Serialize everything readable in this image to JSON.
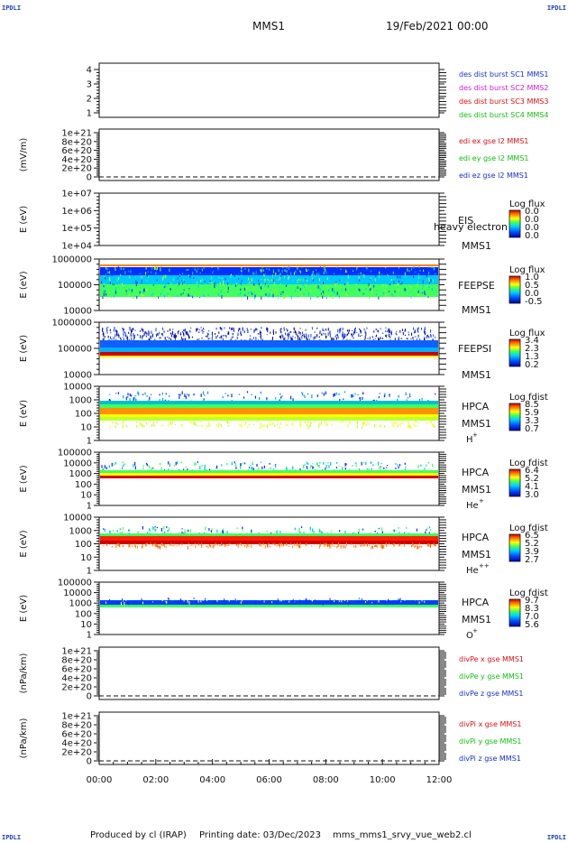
{
  "header": {
    "corner_left_top": "IPDLI",
    "corner_right_top": "IPDLI",
    "corner_left_bottom": "IPDLI",
    "corner_right_bottom": "IPDLI",
    "title": "MMS1",
    "date": "19/Feb/2021 00:00"
  },
  "footer": {
    "produced": "Produced by cl (IRAP)",
    "printing": "Printing date: 03/Dec/2023",
    "script": "mms_mms1_srvy_vue_web2.cl"
  },
  "chart_data": {
    "type": "heatmap",
    "x_ticks": [
      "00:00",
      "02:00",
      "04:00",
      "06:00",
      "08:00",
      "10:00",
      "12:00"
    ],
    "panels": [
      {
        "id": "des",
        "ylabel": "",
        "yticks": [
          "4",
          "3",
          "2",
          "1"
        ],
        "legend": [
          {
            "text": "des dist burst SC1 MMS1",
            "color": "#1a2fd0"
          },
          {
            "text": "des dist burst SC2 MMS2",
            "color": "#d020d0"
          },
          {
            "text": "des dist burst SC3 MMS3",
            "color": "#e01010"
          },
          {
            "text": "des dist burst SC4 MMS4",
            "color": "#10c010"
          }
        ]
      },
      {
        "id": "edi",
        "ylabel": "(mV/m)",
        "yticks": [
          "1e+21",
          "8e+20",
          "6e+20",
          "4e+20",
          "2e+20",
          "0"
        ],
        "legend": [
          {
            "text": "edi ex gse l2 MMS1",
            "color": "#e01010"
          },
          {
            "text": "edi ey gse l2 MMS1",
            "color": "#10c010"
          },
          {
            "text": "edi ez gse l2 MMS1",
            "color": "#1a2fd0"
          }
        ]
      },
      {
        "id": "eis",
        "ylabel": "E (eV)",
        "yticks": [
          "1e+07",
          "1e+06",
          "1e+05",
          "1e+04"
        ],
        "name": "EIS",
        "name2": "MMS1",
        "overlay": "heavy electron to",
        "cbar_title": "Log flux",
        "cbar_ticks": [
          "0.0",
          "0.0",
          "0.0",
          "0.0"
        ]
      },
      {
        "id": "feepse",
        "ylabel": "E (eV)",
        "yticks": [
          "1000000",
          "100000",
          "10000"
        ],
        "name": "FEEPSE",
        "name2": "MMS1",
        "cbar_title": "Log flux",
        "cbar_ticks": [
          "1.0",
          "0.5",
          "0.0",
          "-0.5"
        ]
      },
      {
        "id": "feepsi",
        "ylabel": "E (eV)",
        "yticks": [
          "1000000",
          "100000",
          "10000"
        ],
        "name": "FEEPSI",
        "name2": "MMS1",
        "cbar_title": "Log flux",
        "cbar_ticks": [
          "3.4",
          "2.3",
          "1.3",
          "0.2"
        ]
      },
      {
        "id": "hpca_h",
        "ylabel": "E (eV)",
        "yticks": [
          "10000",
          "1000",
          "100",
          "10",
          "1"
        ],
        "name": "HPCA",
        "name2": "MMS1",
        "species": "H",
        "species_sup": "+",
        "cbar_title": "Log fdist",
        "cbar_ticks": [
          "8.5",
          "5.9",
          "3.3",
          "0.7"
        ]
      },
      {
        "id": "hpca_he",
        "ylabel": "E (eV)",
        "yticks": [
          "100000",
          "10000",
          "1000",
          "100",
          "10",
          "1"
        ],
        "name": "HPCA",
        "name2": "MMS1",
        "species": "He",
        "species_sup": "+",
        "cbar_title": "Log fdist",
        "cbar_ticks": [
          "6.4",
          "5.2",
          "4.1",
          "3.0"
        ]
      },
      {
        "id": "hpca_hepp",
        "ylabel": "E (eV)",
        "yticks": [
          "10000",
          "1000",
          "100",
          "10",
          "1"
        ],
        "name": "HPCA",
        "name2": "MMS1",
        "species": "He",
        "species_sup": "++",
        "cbar_title": "Log fdist",
        "cbar_ticks": [
          "6.5",
          "5.2",
          "3.9",
          "2.7"
        ]
      },
      {
        "id": "hpca_o",
        "ylabel": "E (eV)",
        "yticks": [
          "100000",
          "10000",
          "1000",
          "100",
          "10",
          "1"
        ],
        "name": "HPCA",
        "name2": "MMS1",
        "species": "O",
        "species_sup": "+",
        "cbar_title": "Log fdist",
        "cbar_ticks": [
          "9.7",
          "8.3",
          "7.0",
          "5.6"
        ]
      },
      {
        "id": "divpe",
        "ylabel": "(nPa/km)",
        "yticks": [
          "1e+21",
          "8e+20",
          "6e+20",
          "4e+20",
          "2e+20",
          "0"
        ],
        "legend": [
          {
            "text": "divPe x gse MMS1",
            "color": "#e01010"
          },
          {
            "text": "divPe y gse MMS1",
            "color": "#10c010"
          },
          {
            "text": "divPe z gse MMS1",
            "color": "#1a2fd0"
          }
        ]
      },
      {
        "id": "divpi",
        "ylabel": "(nPa/km)",
        "yticks": [
          "1e+21",
          "8e+20",
          "6e+20",
          "4e+20",
          "2e+20",
          "0"
        ],
        "legend": [
          {
            "text": "divPi x gse MMS1",
            "color": "#e01010"
          },
          {
            "text": "divPi y gse MMS1",
            "color": "#10c010"
          },
          {
            "text": "divPi z gse MMS1",
            "color": "#1a2fd0"
          }
        ]
      }
    ]
  }
}
